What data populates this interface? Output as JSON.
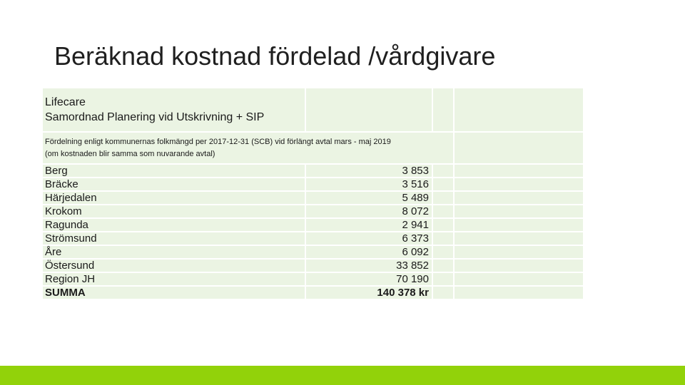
{
  "slide": {
    "title": "Beräknad kostnad fördelad /vårdgivare"
  },
  "table": {
    "header_line1": "Lifecare",
    "header_line2": "Samordnad Planering vid Utskrivning + SIP",
    "note_line1": "Fördelning enligt kommunernas folkmängd per 2017-12-31 (SCB) vid förlängt avtal mars - maj 2019",
    "note_line2": "(om kostnaden blir samma som nuvarande avtal)",
    "rows": [
      {
        "name": "Berg",
        "value": "3 853"
      },
      {
        "name": "Bräcke",
        "value": "3 516"
      },
      {
        "name": "Härjedalen",
        "value": "5 489"
      },
      {
        "name": "Krokom",
        "value": "8 072"
      },
      {
        "name": "Ragunda",
        "value": "2 941"
      },
      {
        "name": "Strömsund",
        "value": "6 373"
      },
      {
        "name": "Åre",
        "value": "6 092"
      },
      {
        "name": "Östersund",
        "value": "33 852"
      },
      {
        "name": "Region JH",
        "value": "70 190"
      }
    ],
    "sum": {
      "name": "SUMMA",
      "value": "140 378 kr"
    }
  },
  "colors": {
    "cell_background": "#ebf4e3",
    "accent_bar": "#92d20a"
  }
}
